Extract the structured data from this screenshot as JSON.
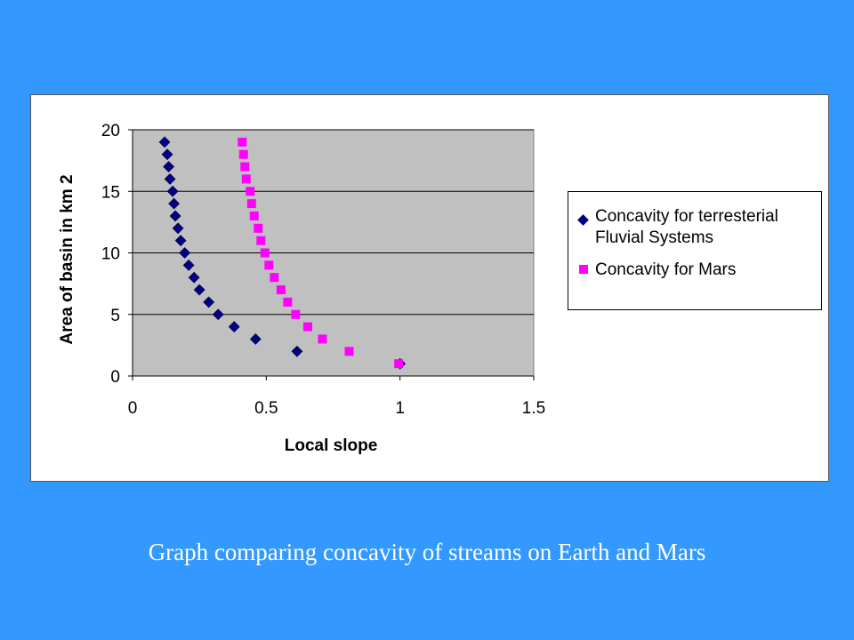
{
  "caption": "Graph comparing concavity of streams on Earth and Mars",
  "chart_data": {
    "type": "scatter",
    "xlabel": "Local slope",
    "ylabel": "Area of basin in km 2",
    "xlim": [
      0,
      1.5
    ],
    "ylim": [
      0,
      20
    ],
    "x_ticks": [
      "0",
      "0.5",
      "1",
      "1.5"
    ],
    "y_ticks": [
      "0",
      "5",
      "10",
      "15",
      "20"
    ],
    "grid": "horizontal",
    "plot_background": "#c0c0c0",
    "legend_position": "right",
    "series": [
      {
        "name": "Concavity for terresterial\nFluvial Systems",
        "marker": "diamond",
        "color": "#000080",
        "points": [
          [
            0.12,
            19
          ],
          [
            0.13,
            18
          ],
          [
            0.135,
            17
          ],
          [
            0.14,
            16
          ],
          [
            0.15,
            15
          ],
          [
            0.155,
            14
          ],
          [
            0.16,
            13
          ],
          [
            0.17,
            12
          ],
          [
            0.18,
            11
          ],
          [
            0.195,
            10
          ],
          [
            0.21,
            9
          ],
          [
            0.23,
            8
          ],
          [
            0.25,
            7
          ],
          [
            0.285,
            6
          ],
          [
            0.32,
            5
          ],
          [
            0.38,
            4
          ],
          [
            0.46,
            3
          ],
          [
            0.615,
            2
          ],
          [
            1.0,
            1
          ]
        ]
      },
      {
        "name": "Concavity for Mars",
        "marker": "square",
        "color": "#ff00ff",
        "points": [
          [
            0.41,
            19
          ],
          [
            0.415,
            18
          ],
          [
            0.42,
            17
          ],
          [
            0.425,
            16
          ],
          [
            0.44,
            15
          ],
          [
            0.445,
            14
          ],
          [
            0.455,
            13
          ],
          [
            0.47,
            12
          ],
          [
            0.48,
            11
          ],
          [
            0.495,
            10
          ],
          [
            0.51,
            9
          ],
          [
            0.53,
            8
          ],
          [
            0.555,
            7
          ],
          [
            0.58,
            6
          ],
          [
            0.61,
            5
          ],
          [
            0.655,
            4
          ],
          [
            0.71,
            3
          ],
          [
            0.81,
            2
          ],
          [
            0.995,
            1
          ]
        ]
      }
    ]
  }
}
